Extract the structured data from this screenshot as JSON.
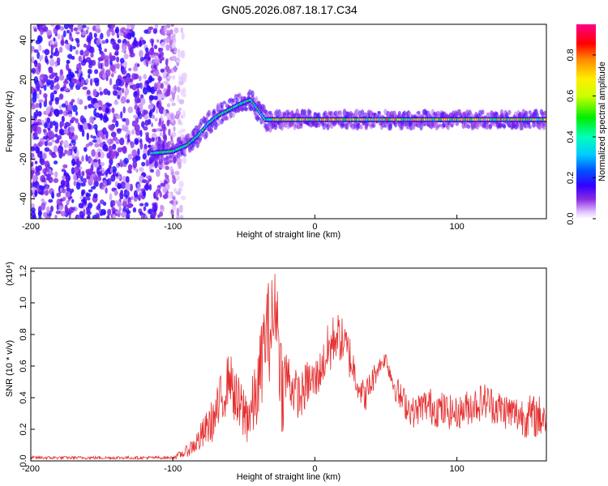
{
  "title": "GN05.2026.087.18.17.C34",
  "chart_data": [
    {
      "type": "heatmap",
      "xlabel": "Height of straight line (km)",
      "ylabel": "Frequency (Hz)",
      "xlim": [
        -200,
        163
      ],
      "ylim": [
        -50,
        48
      ],
      "x_ticks": [
        -200,
        -100,
        0,
        100
      ],
      "y_ticks": [
        -40,
        -20,
        0,
        20,
        40
      ],
      "colorbar": {
        "label": "Normalized spectral amplitude",
        "range": [
          0,
          0.95
        ],
        "ticks": [
          0.0,
          0.2,
          0.4,
          0.6,
          0.8
        ]
      },
      "ridge": {
        "x": [
          -115,
          -100,
          -90,
          -82,
          -75,
          -68,
          -60,
          -52,
          -45,
          -40,
          -35,
          -30,
          0,
          50,
          100,
          163
        ],
        "freq": [
          -17,
          -16,
          -13,
          -8,
          -2,
          2,
          5,
          8,
          10,
          5,
          0,
          0,
          0,
          0,
          0,
          0
        ]
      },
      "noise_region": [
        -200,
        -100
      ]
    },
    {
      "type": "line",
      "xlabel": "Height of straight line (km)",
      "ylabel": "SNR (10 * v/v)",
      "y_multiplier": "(x10⁴)",
      "xlim": [
        -200,
        163
      ],
      "ylim": [
        0,
        1.22
      ],
      "x_ticks": [
        -200,
        -100,
        0,
        100
      ],
      "y_ticks": [
        0.0,
        0.2,
        0.4,
        0.6,
        0.8,
        1.0,
        1.2
      ],
      "series": [
        {
          "color": "#e53030",
          "envelope": {
            "x": [
              -200,
              -100,
              -92,
              -85,
              -80,
              -75,
              -70,
              -65,
              -60,
              -55,
              -50,
              -45,
              -40,
              -35,
              -30,
              -27,
              -25,
              -23,
              -20,
              -15,
              -10,
              -5,
              0,
              5,
              10,
              15,
              20,
              25,
              30,
              35,
              40,
              45,
              50,
              55,
              60,
              65,
              70,
              75,
              80,
              90,
              100,
              110,
              120,
              130,
              140,
              150,
              163
            ],
            "y": [
              0.02,
              0.02,
              0.05,
              0.1,
              0.15,
              0.22,
              0.28,
              0.4,
              0.55,
              0.35,
              0.3,
              0.3,
              0.45,
              0.8,
              0.85,
              1.0,
              0.7,
              0.45,
              0.55,
              0.45,
              0.4,
              0.5,
              0.5,
              0.6,
              0.7,
              0.8,
              0.75,
              0.65,
              0.5,
              0.4,
              0.5,
              0.6,
              0.65,
              0.5,
              0.4,
              0.35,
              0.3,
              0.35,
              0.35,
              0.32,
              0.3,
              0.35,
              0.38,
              0.33,
              0.3,
              0.28,
              0.28
            ],
            "amp": [
              0.01,
              0.01,
              0.03,
              0.06,
              0.1,
              0.12,
              0.15,
              0.2,
              0.15,
              0.2,
              0.2,
              0.2,
              0.25,
              0.3,
              0.35,
              0.22,
              0.3,
              0.3,
              0.2,
              0.15,
              0.15,
              0.15,
              0.15,
              0.12,
              0.2,
              0.15,
              0.15,
              0.15,
              0.1,
              0.1,
              0.1,
              0.05,
              0.05,
              0.08,
              0.1,
              0.1,
              0.1,
              0.1,
              0.12,
              0.12,
              0.1,
              0.12,
              0.12,
              0.12,
              0.12,
              0.14,
              0.14
            ]
          }
        }
      ]
    }
  ]
}
